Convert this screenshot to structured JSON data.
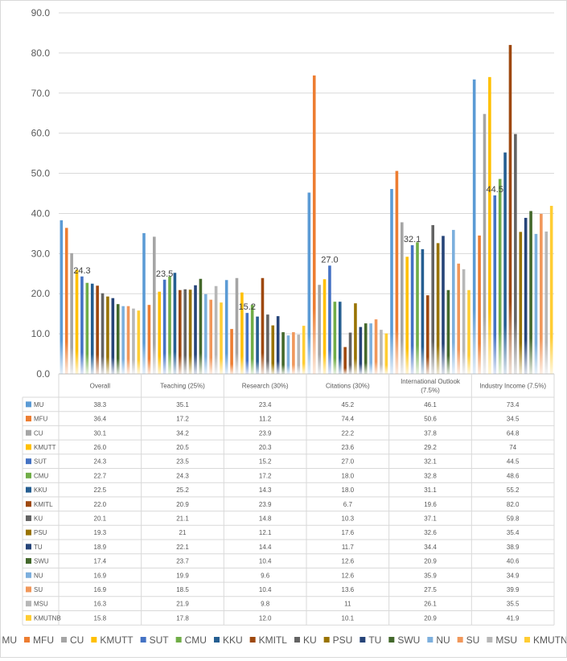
{
  "chart_data": {
    "type": "bar",
    "categories": [
      "Overall",
      "Teaching (25%)",
      "Research (30%)",
      "Citations (30%)",
      "International Outlook (7.5%)",
      "Industry Income (7.5%)"
    ],
    "ylim": [
      0,
      90
    ],
    "yticks": [
      "0.0",
      "10.0",
      "20.0",
      "30.0",
      "40.0",
      "50.0",
      "60.0",
      "70.0",
      "80.0",
      "90.0"
    ],
    "grid": true,
    "legend_position": "bottom",
    "series": [
      {
        "name": "MU",
        "color": "#5B9BD5",
        "values": [
          38.3,
          35.1,
          23.4,
          45.2,
          46.1,
          73.4
        ],
        "cells": [
          "38.3",
          "35.1",
          "23.4",
          "45.2",
          "46.1",
          "73.4"
        ]
      },
      {
        "name": "MFU",
        "color": "#ED7D31",
        "values": [
          36.4,
          17.2,
          11.2,
          74.4,
          50.6,
          34.5
        ],
        "cells": [
          "36.4",
          "17.2",
          "11.2",
          "74.4",
          "50.6",
          "34.5"
        ]
      },
      {
        "name": "CU",
        "color": "#A5A5A5",
        "values": [
          30.1,
          34.2,
          23.9,
          22.2,
          37.8,
          64.8
        ],
        "cells": [
          "30.1",
          "34.2",
          "23.9",
          "22.2",
          "37.8",
          "64.8"
        ]
      },
      {
        "name": "KMUTT",
        "color": "#FFC000",
        "values": [
          26.0,
          20.5,
          20.3,
          23.6,
          29.2,
          74
        ],
        "cells": [
          "26.0",
          "20.5",
          "20.3",
          "23.6",
          "29.2",
          "74"
        ]
      },
      {
        "name": "SUT",
        "color": "#4472C4",
        "values": [
          24.3,
          23.5,
          15.2,
          27.0,
          32.1,
          44.5
        ],
        "cells": [
          "24.3",
          "23.5",
          "15.2",
          "27.0",
          "32.1",
          "44.5"
        ]
      },
      {
        "name": "CMU",
        "color": "#70AD47",
        "values": [
          22.7,
          24.3,
          17.2,
          18.0,
          32.8,
          48.6
        ],
        "cells": [
          "22.7",
          "24.3",
          "17.2",
          "18.0",
          "32.8",
          "48.6"
        ]
      },
      {
        "name": "KKU",
        "color": "#255E91",
        "values": [
          22.5,
          25.2,
          14.3,
          18.0,
          31.1,
          55.2
        ],
        "cells": [
          "22.5",
          "25.2",
          "14.3",
          "18.0",
          "31.1",
          "55.2"
        ]
      },
      {
        "name": "KMITL",
        "color": "#9E480E",
        "values": [
          22.0,
          20.9,
          23.9,
          6.7,
          19.6,
          82.0
        ],
        "cells": [
          "22.0",
          "20.9",
          "23.9",
          "6.7",
          "19.6",
          "82.0"
        ]
      },
      {
        "name": "KU",
        "color": "#636363",
        "values": [
          20.1,
          21.1,
          14.8,
          10.3,
          37.1,
          59.8
        ],
        "cells": [
          "20.1",
          "21.1",
          "14.8",
          "10.3",
          "37.1",
          "59.8"
        ]
      },
      {
        "name": "PSU",
        "color": "#997300",
        "values": [
          19.3,
          21,
          12.1,
          17.6,
          32.6,
          35.4
        ],
        "cells": [
          "19.3",
          "21",
          "12.1",
          "17.6",
          "32.6",
          "35.4"
        ]
      },
      {
        "name": "TU",
        "color": "#264478",
        "values": [
          18.9,
          22.1,
          14.4,
          11.7,
          34.4,
          38.9
        ],
        "cells": [
          "18.9",
          "22.1",
          "14.4",
          "11.7",
          "34.4",
          "38.9"
        ]
      },
      {
        "name": "SWU",
        "color": "#43682B",
        "values": [
          17.4,
          23.7,
          10.4,
          12.6,
          20.9,
          40.6
        ],
        "cells": [
          "17.4",
          "23.7",
          "10.4",
          "12.6",
          "20.9",
          "40.6"
        ]
      },
      {
        "name": "NU",
        "color": "#7CAFDD",
        "values": [
          16.9,
          19.9,
          9.6,
          12.6,
          35.9,
          34.9
        ],
        "cells": [
          "16.9",
          "19.9",
          "9.6",
          "12.6",
          "35.9",
          "34.9"
        ]
      },
      {
        "name": "SU",
        "color": "#F1975A",
        "values": [
          16.9,
          18.5,
          10.4,
          13.6,
          27.5,
          39.9
        ],
        "cells": [
          "16.9",
          "18.5",
          "10.4",
          "13.6",
          "27.5",
          "39.9"
        ]
      },
      {
        "name": "MSU",
        "color": "#B7B7B7",
        "values": [
          16.3,
          21.9,
          9.8,
          11,
          26.1,
          35.5
        ],
        "cells": [
          "16.3",
          "21.9",
          "9.8",
          "11",
          "26.1",
          "35.5"
        ]
      },
      {
        "name": "KMUTNB",
        "color": "#FFCD33",
        "values": [
          15.8,
          17.8,
          12.0,
          10.1,
          20.9,
          41.9
        ],
        "cells": [
          "15.8",
          "17.8",
          "12.0",
          "10.1",
          "20.9",
          "41.9"
        ]
      }
    ],
    "data_labels": {
      "series": "SUT",
      "labels": [
        "24.3",
        "23.5",
        "15.2",
        "27.0",
        "32.1",
        "44.5"
      ]
    }
  }
}
